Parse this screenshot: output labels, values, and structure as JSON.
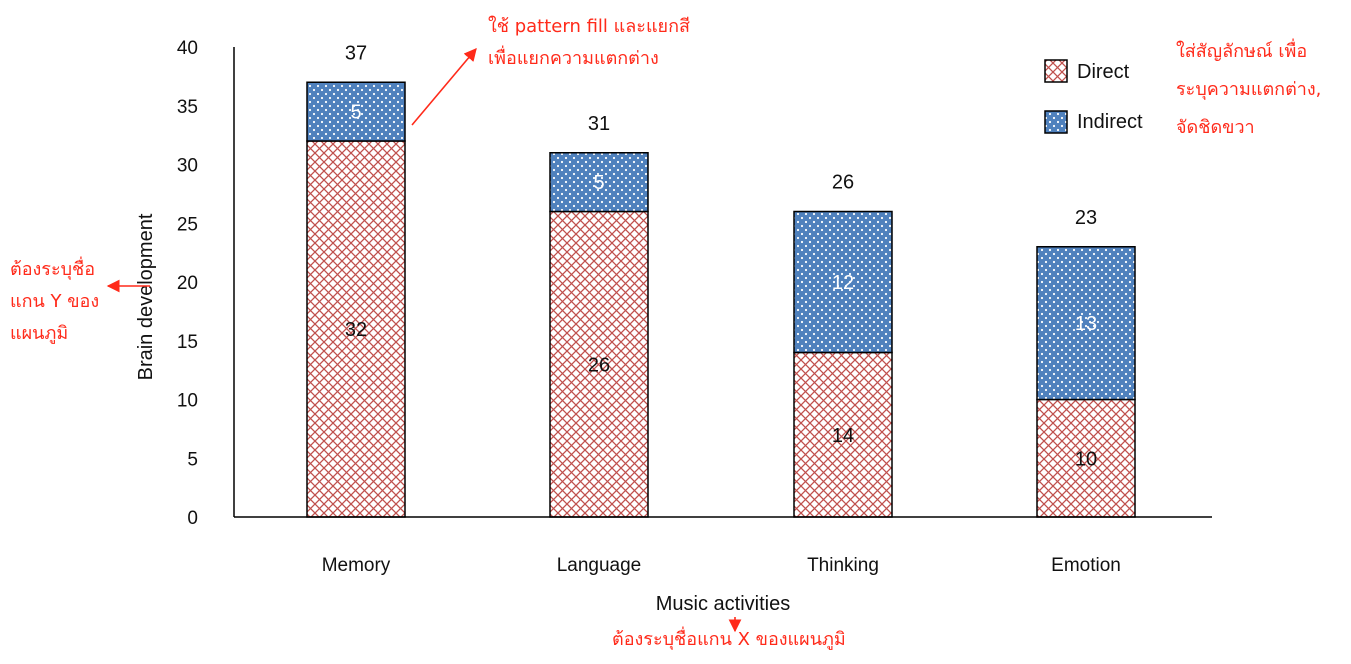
{
  "chart_data": {
    "type": "bar",
    "stacked": true,
    "categories": [
      "Memory",
      "Language",
      "Thinking",
      "Emotion"
    ],
    "series": [
      {
        "name": "Direct",
        "values": [
          32,
          26,
          14,
          10
        ],
        "color": "#c0504d",
        "pattern": "diamond-cross-hatch"
      },
      {
        "name": "Indirect",
        "values": [
          5,
          5,
          12,
          13
        ],
        "color": "#4f81bd",
        "pattern": "dotted"
      }
    ],
    "totals": [
      37,
      31,
      26,
      23
    ],
    "ylim": [
      0,
      40
    ],
    "yticks": [
      0,
      5,
      10,
      15,
      20,
      25,
      30,
      35,
      40
    ],
    "xlabel": "Music activities",
    "ylabel": "Brain development",
    "legend_position": "top-right",
    "grid": false
  },
  "annotations": {
    "pattern_note": [
      "ใช้ pattern fill และแยกสี",
      "เพื่อแยกความแตกต่าง"
    ],
    "legend_note": [
      "ใส่สัญลักษณ์ เพื่อ",
      "ระบุความแตกต่าง,",
      "จัดชิดขวา"
    ],
    "y_axis_note": [
      "ต้องระบุชื่อ",
      "แกน Y ของ",
      "แผนภูมิ"
    ],
    "x_axis_note": "ต้องระบุชื่อแกน X ของแผนภูมิ",
    "color": "#ff2a1a"
  }
}
